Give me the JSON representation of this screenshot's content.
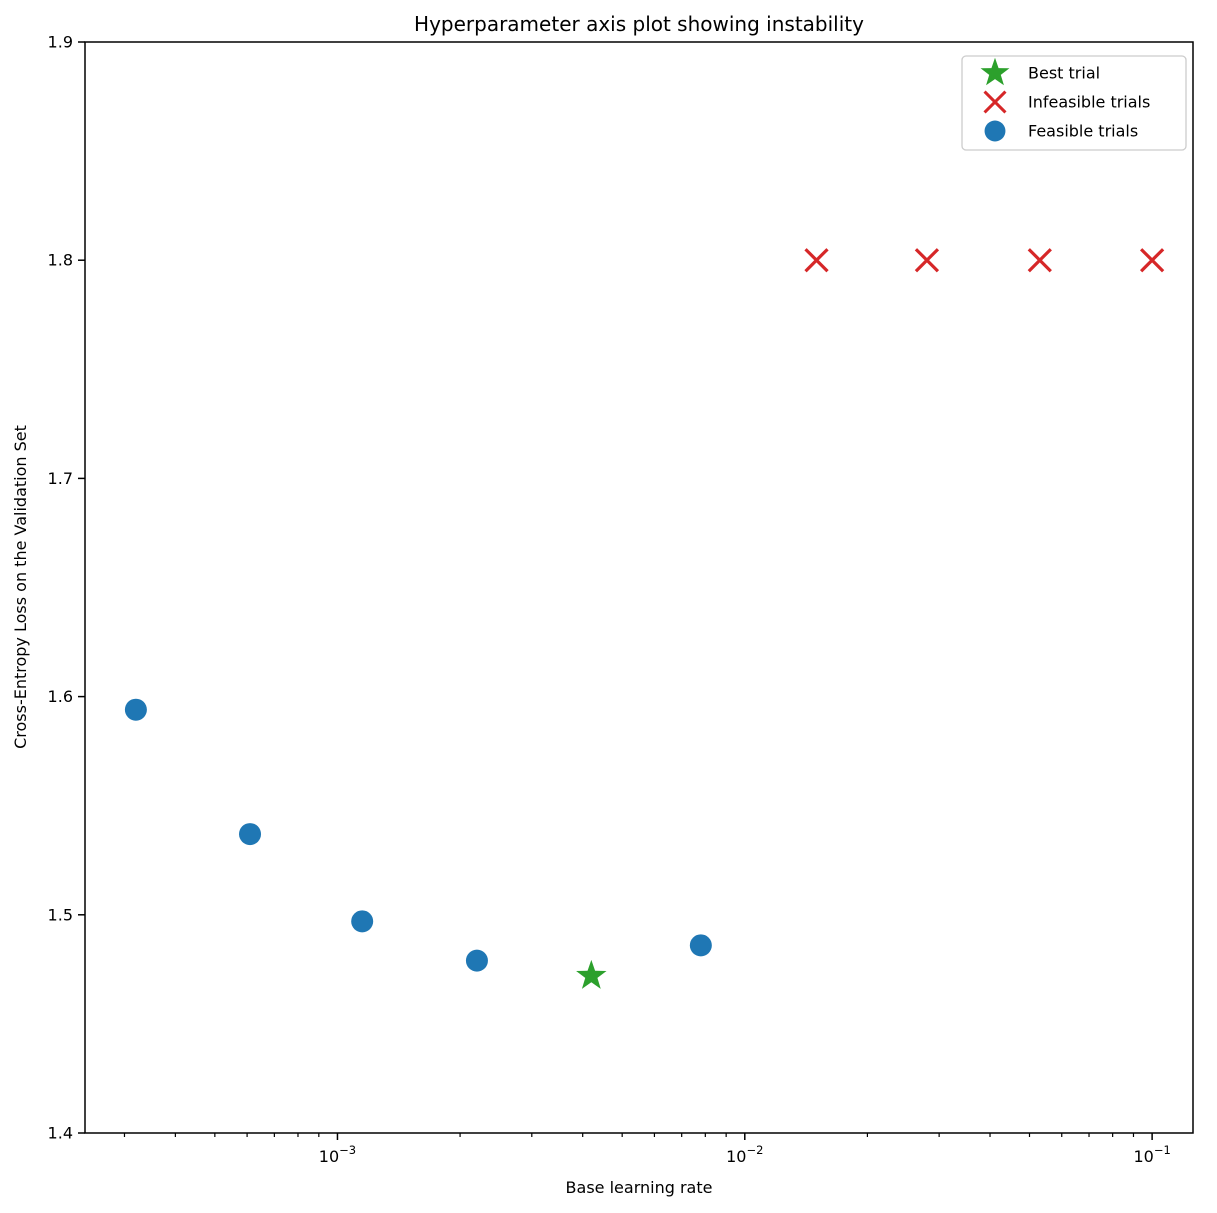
{
  "chart_data": {
    "type": "scatter",
    "title": "Hyperparameter axis plot showing instability",
    "xlabel": "Base learning rate",
    "ylabel": "Cross-Entropy Loss on the Validation Set",
    "x_scale": "log",
    "xlim": [
      0.00024,
      0.126
    ],
    "ylim": [
      1.4,
      1.9
    ],
    "y_ticks": [
      1.4,
      1.5,
      1.6,
      1.7,
      1.8,
      1.9
    ],
    "x_major_ticks": [
      0.001,
      0.01,
      0.1
    ],
    "grid": false,
    "legend_position": "upper right",
    "series": [
      {
        "name": "Best trial",
        "marker": "star",
        "color": "#2ca02c",
        "points": [
          {
            "x": 0.0042,
            "y": 1.472
          }
        ]
      },
      {
        "name": "Infeasible trials",
        "marker": "x",
        "color": "#d62728",
        "points": [
          {
            "x": 0.015,
            "y": 1.8
          },
          {
            "x": 0.028,
            "y": 1.8
          },
          {
            "x": 0.053,
            "y": 1.8
          },
          {
            "x": 0.1,
            "y": 1.8
          }
        ]
      },
      {
        "name": "Feasible trials",
        "marker": "circle",
        "color": "#1f77b4",
        "points": [
          {
            "x": 0.00032,
            "y": 1.594
          },
          {
            "x": 0.00061,
            "y": 1.537
          },
          {
            "x": 0.00115,
            "y": 1.497
          },
          {
            "x": 0.0022,
            "y": 1.479
          },
          {
            "x": 0.0078,
            "y": 1.486
          }
        ]
      }
    ]
  }
}
